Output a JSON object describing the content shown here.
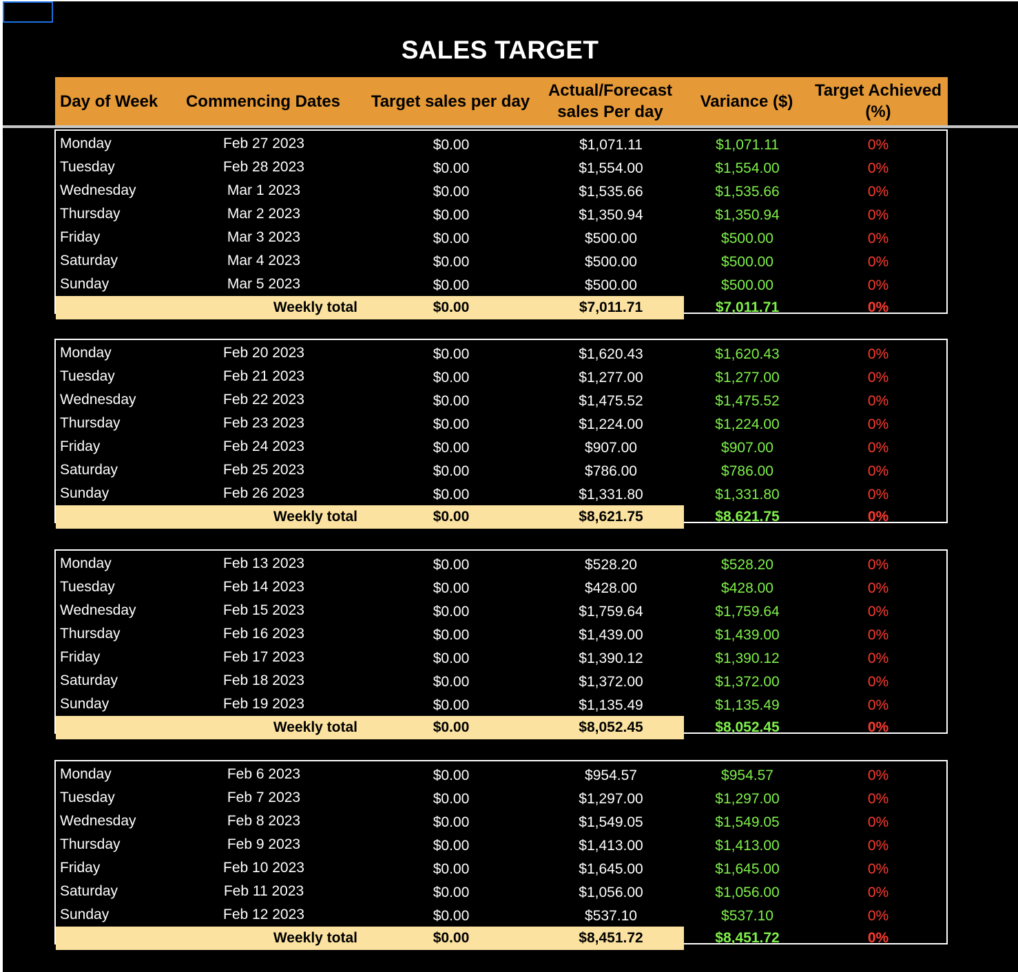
{
  "title": "SALES TARGET",
  "headers": {
    "day": "Day of Week",
    "dates": "Commencing Dates",
    "target": "Target sales per day",
    "actual_line1": "Actual/Forecast",
    "actual_line2": "sales Per day",
    "variance": "Variance ($)",
    "achieved_line1": "Target Achieved",
    "achieved_line2": "(%)"
  },
  "colors": {
    "header_bg": "#e69a37",
    "total_bg": "#fbe2a0",
    "variance_text": "#7ff04a",
    "achieved_text": "#ff3b30",
    "sheet_bg": "#000000"
  },
  "total_label": "Weekly total",
  "weeks": [
    {
      "rows": [
        {
          "day": "Monday",
          "date": "Feb 27 2023",
          "target": "$0.00",
          "actual": "$1,071.11",
          "variance": "$1,071.11",
          "achieved": "0%"
        },
        {
          "day": "Tuesday",
          "date": "Feb 28 2023",
          "target": "$0.00",
          "actual": "$1,554.00",
          "variance": "$1,554.00",
          "achieved": "0%"
        },
        {
          "day": "Wednesday",
          "date": "Mar 1 2023",
          "target": "$0.00",
          "actual": "$1,535.66",
          "variance": "$1,535.66",
          "achieved": "0%"
        },
        {
          "day": "Thursday",
          "date": "Mar 2 2023",
          "target": "$0.00",
          "actual": "$1,350.94",
          "variance": "$1,350.94",
          "achieved": "0%"
        },
        {
          "day": "Friday",
          "date": "Mar 3 2023",
          "target": "$0.00",
          "actual": "$500.00",
          "variance": "$500.00",
          "achieved": "0%"
        },
        {
          "day": "Saturday",
          "date": "Mar 4 2023",
          "target": "$0.00",
          "actual": "$500.00",
          "variance": "$500.00",
          "achieved": "0%"
        },
        {
          "day": "Sunday",
          "date": "Mar 5 2023",
          "target": "$0.00",
          "actual": "$500.00",
          "variance": "$500.00",
          "achieved": "0%"
        }
      ],
      "total": {
        "target": "$0.00",
        "actual": "$7,011.71",
        "variance": "$7,011.71",
        "achieved": "0%"
      }
    },
    {
      "rows": [
        {
          "day": "Monday",
          "date": "Feb 20 2023",
          "target": "$0.00",
          "actual": "$1,620.43",
          "variance": "$1,620.43",
          "achieved": "0%"
        },
        {
          "day": "Tuesday",
          "date": "Feb 21 2023",
          "target": "$0.00",
          "actual": "$1,277.00",
          "variance": "$1,277.00",
          "achieved": "0%"
        },
        {
          "day": "Wednesday",
          "date": "Feb 22 2023",
          "target": "$0.00",
          "actual": "$1,475.52",
          "variance": "$1,475.52",
          "achieved": "0%"
        },
        {
          "day": "Thursday",
          "date": "Feb 23 2023",
          "target": "$0.00",
          "actual": "$1,224.00",
          "variance": "$1,224.00",
          "achieved": "0%"
        },
        {
          "day": "Friday",
          "date": "Feb 24 2023",
          "target": "$0.00",
          "actual": "$907.00",
          "variance": "$907.00",
          "achieved": "0%"
        },
        {
          "day": "Saturday",
          "date": "Feb 25 2023",
          "target": "$0.00",
          "actual": "$786.00",
          "variance": "$786.00",
          "achieved": "0%"
        },
        {
          "day": "Sunday",
          "date": "Feb 26 2023",
          "target": "$0.00",
          "actual": "$1,331.80",
          "variance": "$1,331.80",
          "achieved": "0%"
        }
      ],
      "total": {
        "target": "$0.00",
        "actual": "$8,621.75",
        "variance": "$8,621.75",
        "achieved": "0%"
      }
    },
    {
      "rows": [
        {
          "day": "Monday",
          "date": "Feb 13 2023",
          "target": "$0.00",
          "actual": "$528.20",
          "variance": "$528.20",
          "achieved": "0%"
        },
        {
          "day": "Tuesday",
          "date": "Feb 14 2023",
          "target": "$0.00",
          "actual": "$428.00",
          "variance": "$428.00",
          "achieved": "0%"
        },
        {
          "day": "Wednesday",
          "date": "Feb 15 2023",
          "target": "$0.00",
          "actual": "$1,759.64",
          "variance": "$1,759.64",
          "achieved": "0%"
        },
        {
          "day": "Thursday",
          "date": "Feb 16 2023",
          "target": "$0.00",
          "actual": "$1,439.00",
          "variance": "$1,439.00",
          "achieved": "0%"
        },
        {
          "day": "Friday",
          "date": "Feb 17 2023",
          "target": "$0.00",
          "actual": "$1,390.12",
          "variance": "$1,390.12",
          "achieved": "0%"
        },
        {
          "day": "Saturday",
          "date": "Feb 18 2023",
          "target": "$0.00",
          "actual": "$1,372.00",
          "variance": "$1,372.00",
          "achieved": "0%"
        },
        {
          "day": "Sunday",
          "date": "Feb 19 2023",
          "target": "$0.00",
          "actual": "$1,135.49",
          "variance": "$1,135.49",
          "achieved": "0%"
        }
      ],
      "total": {
        "target": "$0.00",
        "actual": "$8,052.45",
        "variance": "$8,052.45",
        "achieved": "0%"
      }
    },
    {
      "rows": [
        {
          "day": "Monday",
          "date": "Feb 6 2023",
          "target": "$0.00",
          "actual": "$954.57",
          "variance": "$954.57",
          "achieved": "0%"
        },
        {
          "day": "Tuesday",
          "date": "Feb 7 2023",
          "target": "$0.00",
          "actual": "$1,297.00",
          "variance": "$1,297.00",
          "achieved": "0%"
        },
        {
          "day": "Wednesday",
          "date": "Feb 8 2023",
          "target": "$0.00",
          "actual": "$1,549.05",
          "variance": "$1,549.05",
          "achieved": "0%"
        },
        {
          "day": "Thursday",
          "date": "Feb 9 2023",
          "target": "$0.00",
          "actual": "$1,413.00",
          "variance": "$1,413.00",
          "achieved": "0%"
        },
        {
          "day": "Friday",
          "date": "Feb 10 2023",
          "target": "$0.00",
          "actual": "$1,645.00",
          "variance": "$1,645.00",
          "achieved": "0%"
        },
        {
          "day": "Saturday",
          "date": "Feb 11 2023",
          "target": "$0.00",
          "actual": "$1,056.00",
          "variance": "$1,056.00",
          "achieved": "0%"
        },
        {
          "day": "Sunday",
          "date": "Feb 12 2023",
          "target": "$0.00",
          "actual": "$537.10",
          "variance": "$537.10",
          "achieved": "0%"
        }
      ],
      "total": {
        "target": "$0.00",
        "actual": "$8,451.72",
        "variance": "$8,451.72",
        "achieved": "0%"
      }
    }
  ]
}
